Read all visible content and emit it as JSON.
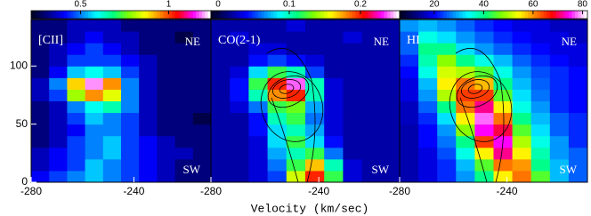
{
  "chart_data": [
    {
      "type": "heatmap",
      "label": "[CII]",
      "annotations": [
        "NE",
        "SW"
      ],
      "x": [
        -276.5,
        -269.5,
        -262.5,
        -255.5,
        -248.5,
        -241.5,
        -234.5,
        -227.5,
        -220.5,
        -213.5
      ],
      "y": [
        5,
        15,
        25,
        35,
        45,
        55,
        65,
        75,
        85,
        95,
        105,
        115,
        125,
        135
      ],
      "z": [
        [
          0.4,
          0.45,
          0.5,
          0.55,
          0.5,
          0.45,
          0.4,
          0.35,
          0.3,
          0.3
        ],
        [
          0.35,
          0.4,
          0.45,
          0.55,
          0.5,
          0.45,
          0.4,
          0.35,
          0.3,
          0.3
        ],
        [
          0.35,
          0.4,
          0.45,
          0.5,
          0.55,
          0.45,
          0.4,
          0.35,
          0.35,
          0.3
        ],
        [
          0.3,
          0.35,
          0.45,
          0.5,
          0.55,
          0.45,
          0.4,
          0.35,
          0.3,
          0.3
        ],
        [
          0.3,
          0.35,
          0.4,
          0.5,
          0.5,
          0.45,
          0.35,
          0.3,
          0.3,
          0.3
        ],
        [
          0.3,
          0.35,
          0.45,
          0.55,
          0.5,
          0.45,
          0.35,
          0.3,
          0.3,
          0.25
        ],
        [
          0.3,
          0.35,
          0.5,
          0.6,
          0.65,
          0.5,
          0.35,
          0.3,
          0.3,
          0.3
        ],
        [
          0.35,
          0.45,
          0.8,
          0.95,
          0.85,
          0.5,
          0.35,
          0.3,
          0.3,
          0.3
        ],
        [
          0.35,
          0.5,
          0.9,
          1.2,
          0.95,
          0.5,
          0.35,
          0.3,
          0.3,
          0.3
        ],
        [
          0.3,
          0.4,
          0.55,
          0.6,
          0.55,
          0.45,
          0.35,
          0.3,
          0.3,
          0.3
        ],
        [
          0.3,
          0.35,
          0.45,
          0.45,
          0.45,
          0.4,
          0.35,
          0.3,
          0.3,
          0.3
        ],
        [
          0.3,
          0.35,
          0.4,
          0.45,
          0.4,
          0.35,
          0.3,
          0.3,
          0.3,
          0.3
        ],
        [
          0.3,
          0.3,
          0.35,
          0.4,
          0.35,
          0.35,
          0.3,
          0.3,
          0.25,
          0.3
        ],
        [
          0.3,
          0.3,
          0.35,
          0.35,
          0.35,
          0.3,
          0.3,
          0.3,
          0.3,
          0.3
        ]
      ],
      "xlim": [
        -280,
        -210
      ],
      "ylim": [
        0,
        140
      ],
      "xticks": [
        -280,
        -240
      ],
      "yticks": [
        0,
        50,
        100
      ],
      "colorbar": {
        "lim": [
          0.22,
          1.24
        ],
        "ticks": [
          0.5,
          1
        ]
      }
    },
    {
      "type": "heatmap",
      "label": "CO(2-1)",
      "annotations": [
        "NE",
        "SW"
      ],
      "x": [
        -276.5,
        -269.5,
        -262.5,
        -255.5,
        -248.5,
        -241.5,
        -234.5,
        -227.5,
        -220.5,
        -213.5
      ],
      "y": [
        5,
        15,
        25,
        35,
        45,
        55,
        65,
        75,
        85,
        95,
        105,
        115,
        125,
        135
      ],
      "z": [
        [
          0.02,
          0.02,
          0.03,
          0.05,
          0.15,
          0.2,
          0.12,
          0.03,
          0.02,
          0.02
        ],
        [
          0.02,
          0.02,
          0.03,
          0.06,
          0.12,
          0.17,
          0.1,
          0.03,
          0.02,
          0.02
        ],
        [
          0.02,
          0.02,
          0.03,
          0.07,
          0.1,
          0.12,
          0.06,
          0.02,
          0.02,
          0.02
        ],
        [
          0.02,
          0.02,
          0.03,
          0.08,
          0.12,
          0.08,
          0.04,
          0.02,
          0.02,
          0.02
        ],
        [
          0.02,
          0.02,
          0.04,
          0.08,
          0.1,
          0.07,
          0.03,
          0.02,
          0.02,
          0.02
        ],
        [
          0.02,
          0.02,
          0.04,
          0.1,
          0.12,
          0.06,
          0.03,
          0.02,
          0.02,
          0.02
        ],
        [
          0.02,
          0.03,
          0.06,
          0.12,
          0.13,
          0.07,
          0.03,
          0.02,
          0.02,
          0.02
        ],
        [
          0.02,
          0.04,
          0.1,
          0.18,
          0.2,
          0.1,
          0.03,
          0.02,
          0.02,
          0.02
        ],
        [
          0.02,
          0.04,
          0.12,
          0.2,
          0.24,
          0.1,
          0.03,
          0.02,
          0.02,
          0.02
        ],
        [
          0.02,
          0.03,
          0.08,
          0.12,
          0.1,
          0.05,
          0.02,
          0.02,
          0.02,
          0.02
        ],
        [
          0.02,
          0.02,
          0.04,
          0.05,
          0.04,
          0.03,
          0.02,
          0.02,
          0.02,
          0.02
        ],
        [
          0.02,
          0.02,
          0.03,
          0.03,
          0.02,
          0.02,
          0.02,
          0.02,
          0.02,
          0.02
        ],
        [
          0.02,
          0.03,
          0.02,
          0.02,
          0.02,
          0.02,
          0.02,
          0.03,
          0.02,
          0.02
        ],
        [
          0.02,
          0.02,
          0.02,
          0.02,
          0.03,
          0.02,
          0.02,
          0.02,
          0.02,
          0.02
        ]
      ],
      "xlim": [
        -280,
        -210
      ],
      "ylim": [
        0,
        140
      ],
      "xticks": [
        -280,
        -240
      ],
      "colorbar": {
        "lim": [
          -0.01,
          0.255
        ],
        "ticks": [
          0,
          0.1,
          0.2
        ]
      }
    },
    {
      "type": "heatmap",
      "label": "HI",
      "annotations": [
        "NE",
        "SW"
      ],
      "x": [
        -276.5,
        -269.5,
        -262.5,
        -255.5,
        -248.5,
        -241.5,
        -234.5,
        -227.5,
        -220.5,
        -213.5
      ],
      "y": [
        5,
        15,
        25,
        35,
        45,
        55,
        65,
        75,
        85,
        95,
        105,
        115,
        125,
        135
      ],
      "z": [
        [
          15,
          18,
          22,
          28,
          40,
          55,
          62,
          45,
          30,
          25
        ],
        [
          15,
          18,
          22,
          30,
          45,
          62,
          60,
          40,
          30,
          25
        ],
        [
          15,
          18,
          24,
          35,
          55,
          72,
          55,
          38,
          28,
          25
        ],
        [
          15,
          20,
          26,
          40,
          65,
          75,
          50,
          35,
          28,
          22
        ],
        [
          15,
          20,
          28,
          48,
          75,
          70,
          45,
          32,
          25,
          22
        ],
        [
          16,
          22,
          32,
          55,
          78,
          62,
          40,
          30,
          25,
          22
        ],
        [
          16,
          25,
          40,
          62,
          72,
          55,
          35,
          28,
          22,
          20
        ],
        [
          18,
          28,
          50,
          65,
          65,
          45,
          32,
          26,
          22,
          20
        ],
        [
          18,
          30,
          55,
          62,
          58,
          40,
          30,
          25,
          22,
          20
        ],
        [
          20,
          35,
          52,
          50,
          45,
          35,
          28,
          24,
          22,
          20
        ],
        [
          22,
          38,
          48,
          40,
          35,
          30,
          25,
          22,
          20,
          18
        ],
        [
          25,
          40,
          40,
          32,
          28,
          25,
          22,
          20,
          18,
          18
        ],
        [
          25,
          35,
          32,
          28,
          25,
          22,
          20,
          18,
          18,
          16
        ],
        [
          28,
          30,
          28,
          25,
          22,
          20,
          18,
          18,
          16,
          16
        ]
      ],
      "xlim": [
        -280,
        -210
      ],
      "ylim": [
        0,
        140
      ],
      "xticks": [
        -280,
        -240
      ],
      "colorbar": {
        "lim": [
          6,
          82
        ],
        "ticks": [
          20,
          40,
          60,
          80
        ]
      }
    }
  ],
  "xlabel": "Velocity (km/sec)",
  "colormap": [
    "#000028",
    "#00008b",
    "#0000ff",
    "#0080ff",
    "#00ffff",
    "#00ff80",
    "#80ff00",
    "#ffff00",
    "#ff8000",
    "#ff0000",
    "#ff00ff",
    "#ffffff"
  ]
}
